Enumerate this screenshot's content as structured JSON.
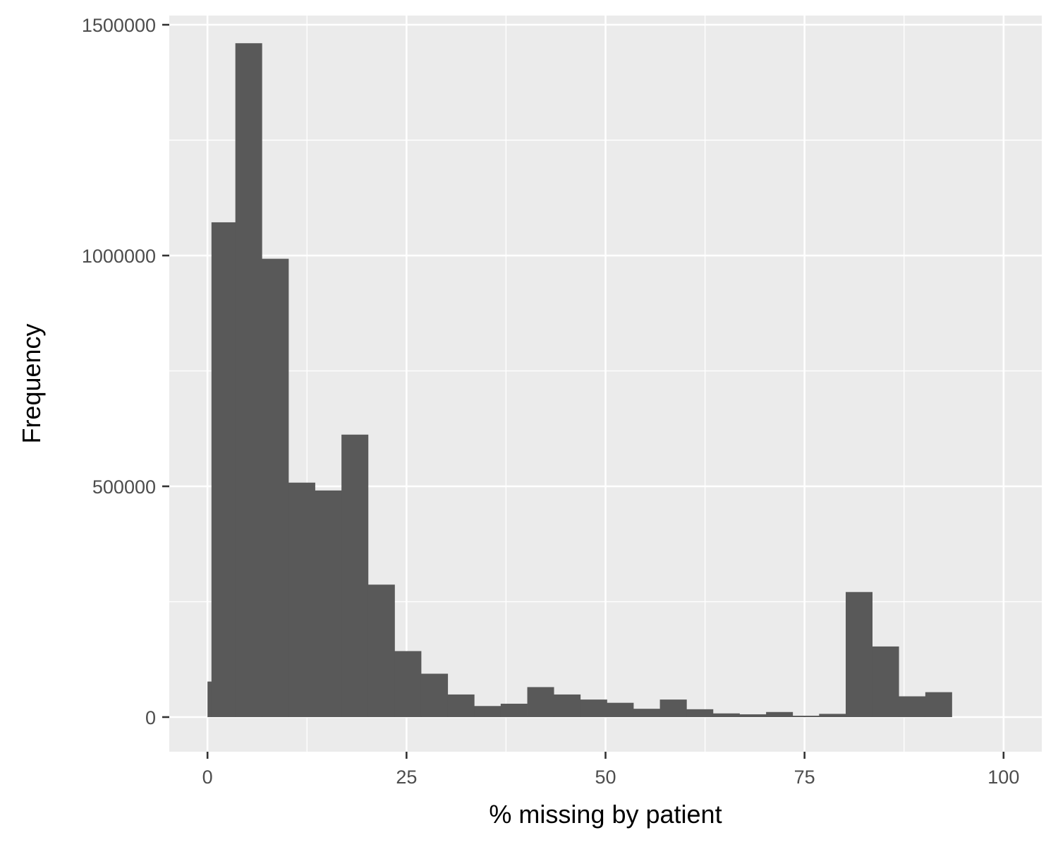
{
  "chart_data": {
    "type": "bar",
    "subtype": "histogram",
    "title": "",
    "xlabel": "% missing by patient",
    "ylabel": "Frequency",
    "xlim": [
      -4.8,
      104.8
    ],
    "ylim": [
      -75000,
      1520000
    ],
    "x_ticks": [
      0,
      25,
      50,
      75,
      100
    ],
    "y_ticks": [
      0,
      500000,
      1000000,
      1500000
    ],
    "y_tick_labels": [
      "0",
      "500000",
      "1000000",
      "1500000"
    ],
    "bin_width": 3.33,
    "bins": [
      {
        "x0": 0.0,
        "x1": 0.5,
        "value": 77000
      },
      {
        "x0": 0.5,
        "x1": 3.5,
        "value": 1072000
      },
      {
        "x0": 3.5,
        "x1": 6.83,
        "value": 1460000
      },
      {
        "x0": 6.83,
        "x1": 10.17,
        "value": 993000
      },
      {
        "x0": 10.17,
        "x1": 13.5,
        "value": 508000
      },
      {
        "x0": 13.5,
        "x1": 16.83,
        "value": 491000
      },
      {
        "x0": 16.83,
        "x1": 20.17,
        "value": 612000
      },
      {
        "x0": 20.17,
        "x1": 23.5,
        "value": 287000
      },
      {
        "x0": 23.5,
        "x1": 26.83,
        "value": 143000
      },
      {
        "x0": 26.83,
        "x1": 30.17,
        "value": 94000
      },
      {
        "x0": 30.17,
        "x1": 33.5,
        "value": 49000
      },
      {
        "x0": 33.5,
        "x1": 36.83,
        "value": 24000
      },
      {
        "x0": 36.83,
        "x1": 40.17,
        "value": 29000
      },
      {
        "x0": 40.17,
        "x1": 43.5,
        "value": 65000
      },
      {
        "x0": 43.5,
        "x1": 46.83,
        "value": 49000
      },
      {
        "x0": 46.83,
        "x1": 50.17,
        "value": 38000
      },
      {
        "x0": 50.17,
        "x1": 53.5,
        "value": 31000
      },
      {
        "x0": 53.5,
        "x1": 56.83,
        "value": 18000
      },
      {
        "x0": 56.83,
        "x1": 60.17,
        "value": 38000
      },
      {
        "x0": 60.17,
        "x1": 63.5,
        "value": 17000
      },
      {
        "x0": 63.5,
        "x1": 66.83,
        "value": 8000
      },
      {
        "x0": 66.83,
        "x1": 70.17,
        "value": 6000
      },
      {
        "x0": 70.17,
        "x1": 73.5,
        "value": 11000
      },
      {
        "x0": 73.5,
        "x1": 76.83,
        "value": 3000
      },
      {
        "x0": 76.83,
        "x1": 80.17,
        "value": 7000
      },
      {
        "x0": 80.17,
        "x1": 83.5,
        "value": 271000
      },
      {
        "x0": 83.5,
        "x1": 86.83,
        "value": 153000
      },
      {
        "x0": 86.83,
        "x1": 90.17,
        "value": 45000
      },
      {
        "x0": 90.17,
        "x1": 93.5,
        "value": 54000
      }
    ],
    "grid": true,
    "legend": "none",
    "colors": {
      "bar": "#595959",
      "panel_background": "#ebebeb",
      "gridline": "#ffffff",
      "tick_text": "#4d4d4d",
      "axis_title": "#000000"
    }
  }
}
